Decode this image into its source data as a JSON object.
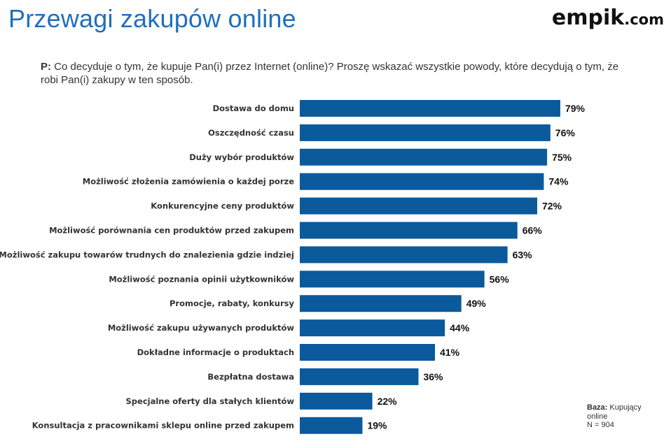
{
  "title": "Przewagi zakupów online",
  "logo": {
    "main": "empik",
    "domain": ".com"
  },
  "question": {
    "prefix": "P:",
    "text": " Co decyduje o tym, że kupuje Pan(i) przez Internet (online)? Proszę wskazać wszystkie powody, które decydują o tym, że robi Pan(i) zakupy w ten sposób."
  },
  "base": {
    "label": "Baza:",
    "text": " Kupujący online",
    "n": "N = 904"
  },
  "colors": {
    "bar": "#0a5a9c",
    "title": "#1f6fbf"
  },
  "chart_data": {
    "type": "bar",
    "orientation": "horizontal",
    "unit": "%",
    "xlim": [
      0,
      100
    ],
    "grid": false,
    "categories": [
      "Dostawa do domu",
      "Oszczędność czasu",
      "Duży wybór produktów",
      "Możliwość złożenia zamówienia o każdej porze",
      "Konkurencyjne ceny produktów",
      "Możliwość porównania cen produktów przed zakupem",
      "Możliwość zakupu towarów trudnych do znalezienia gdzie indziej",
      "Możliwość poznania opinii użytkowników",
      "Promocje, rabaty, konkursy",
      "Możliwość zakupu używanych produktów",
      "Dokładne informacje o produktach",
      "Bezpłatna dostawa",
      "Specjalne oferty dla stałych klientów",
      "Konsultacja z pracownikami sklepu online przed zakupem"
    ],
    "values": [
      79,
      76,
      75,
      74,
      72,
      66,
      63,
      56,
      49,
      44,
      41,
      36,
      22,
      19
    ],
    "value_labels": [
      "79%",
      "76%",
      "75%",
      "74%",
      "72%",
      "66%",
      "63%",
      "56%",
      "49%",
      "44%",
      "41%",
      "36%",
      "22%",
      "19%"
    ]
  }
}
